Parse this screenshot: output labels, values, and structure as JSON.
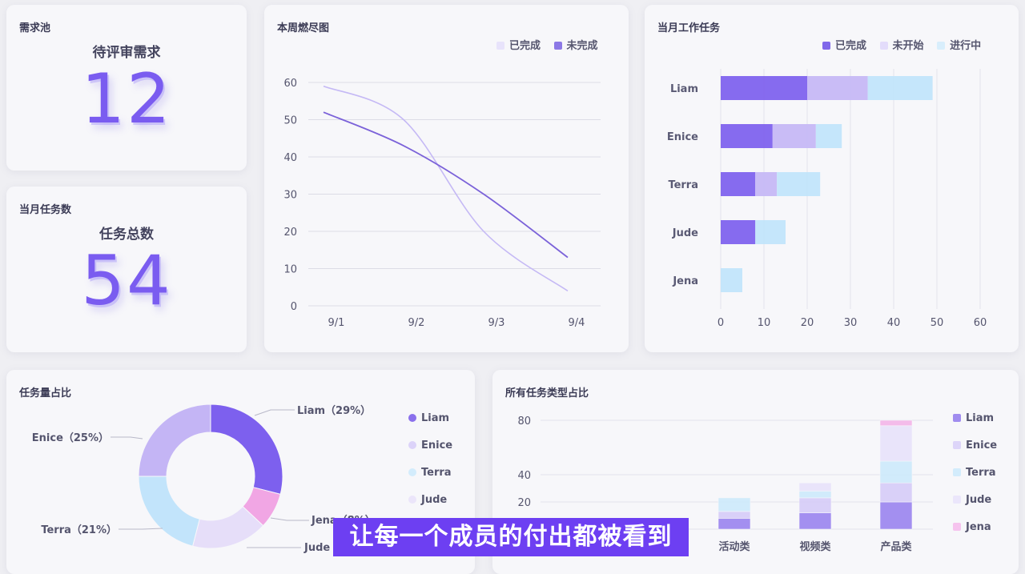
{
  "demand_pool": {
    "title": "需求池",
    "label": "待评审需求",
    "value": "12"
  },
  "monthly_tasks": {
    "title": "当月任务数",
    "label": "任务总数",
    "value": "54"
  },
  "burndown": {
    "title": "本周燃尽图",
    "legend": [
      "已完成",
      "未完成"
    ],
    "colors": {
      "done": "#c5b9f5",
      "undone": "#7b62d9"
    },
    "chart_data": {
      "type": "line",
      "x": [
        "9/1",
        "9/2",
        "9/3",
        "9/4"
      ],
      "ylim": [
        0,
        60
      ],
      "yticks": [
        "0",
        "10",
        "20",
        "30",
        "40",
        "50",
        "60"
      ],
      "series": [
        {
          "name": "已完成",
          "values": [
            59,
            50,
            20,
            4
          ]
        },
        {
          "name": "未完成",
          "values": [
            52,
            43,
            30,
            13
          ]
        }
      ]
    }
  },
  "monthly_work": {
    "title": "当月工作任务",
    "legend": [
      "已完成",
      "未开始",
      "进行中"
    ],
    "colors": {
      "done": "#7f63ee",
      "not_started": "#c6b8f6",
      "in_progress": "#bfe3fb"
    },
    "chart_data": {
      "type": "bar",
      "orientation": "horizontal",
      "categories": [
        "Liam",
        "Enice",
        "Terra",
        "Jude",
        "Jena"
      ],
      "xlim": [
        0,
        60
      ],
      "xticks": [
        "0",
        "10",
        "20",
        "30",
        "40",
        "50",
        "60"
      ],
      "series": [
        {
          "name": "已完成",
          "values": [
            20,
            12,
            8,
            8,
            0
          ]
        },
        {
          "name": "未开始",
          "values": [
            14,
            10,
            5,
            0,
            0
          ]
        },
        {
          "name": "进行中",
          "values": [
            15,
            6,
            10,
            7,
            5
          ]
        }
      ]
    }
  },
  "task_share": {
    "title": "任务量占比",
    "legend": [
      "Liam",
      "Enice",
      "Terra",
      "Jude",
      "Jena"
    ],
    "labels": [
      "Liam（29%）",
      "Enice（25%）",
      "Terra（21%）",
      "Jena（8%）",
      "Jude"
    ],
    "colors": [
      "#7d60ee",
      "#c4b5f5",
      "#c2e4fb",
      "#e6def9",
      "#f1a6e4"
    ],
    "chart_data": {
      "type": "pie",
      "categories": [
        "Liam",
        "Jena",
        "Jude",
        "Terra",
        "Enice"
      ],
      "values": [
        29,
        8,
        17,
        21,
        25
      ]
    }
  },
  "task_types": {
    "title": "所有任务类型占比",
    "legend": [
      "Liam",
      "Enice",
      "Terra",
      "Jude",
      "Jena"
    ],
    "colors": [
      "#9a84ef",
      "#d6ccf8",
      "#cdeafc",
      "#e8e2fa",
      "#f4b5e9"
    ],
    "chart_data": {
      "type": "bar",
      "stacked": true,
      "categories": [
        "",
        "",
        "活动类",
        "视频类",
        "产品类"
      ],
      "ylim": [
        0,
        80
      ],
      "yticks": [
        "20",
        "40",
        "80"
      ],
      "series": [
        {
          "name": "Liam",
          "values": [
            0,
            0,
            8,
            12,
            20
          ]
        },
        {
          "name": "Enice",
          "values": [
            0,
            0,
            5,
            11,
            14
          ]
        },
        {
          "name": "Terra",
          "values": [
            0,
            0,
            10,
            5,
            16
          ]
        },
        {
          "name": "Jude",
          "values": [
            0,
            0,
            0,
            6,
            26
          ]
        },
        {
          "name": "Jena",
          "values": [
            0,
            6,
            0,
            0,
            4
          ]
        }
      ]
    }
  },
  "subtitle": "让每一个成员的付出都被看到"
}
